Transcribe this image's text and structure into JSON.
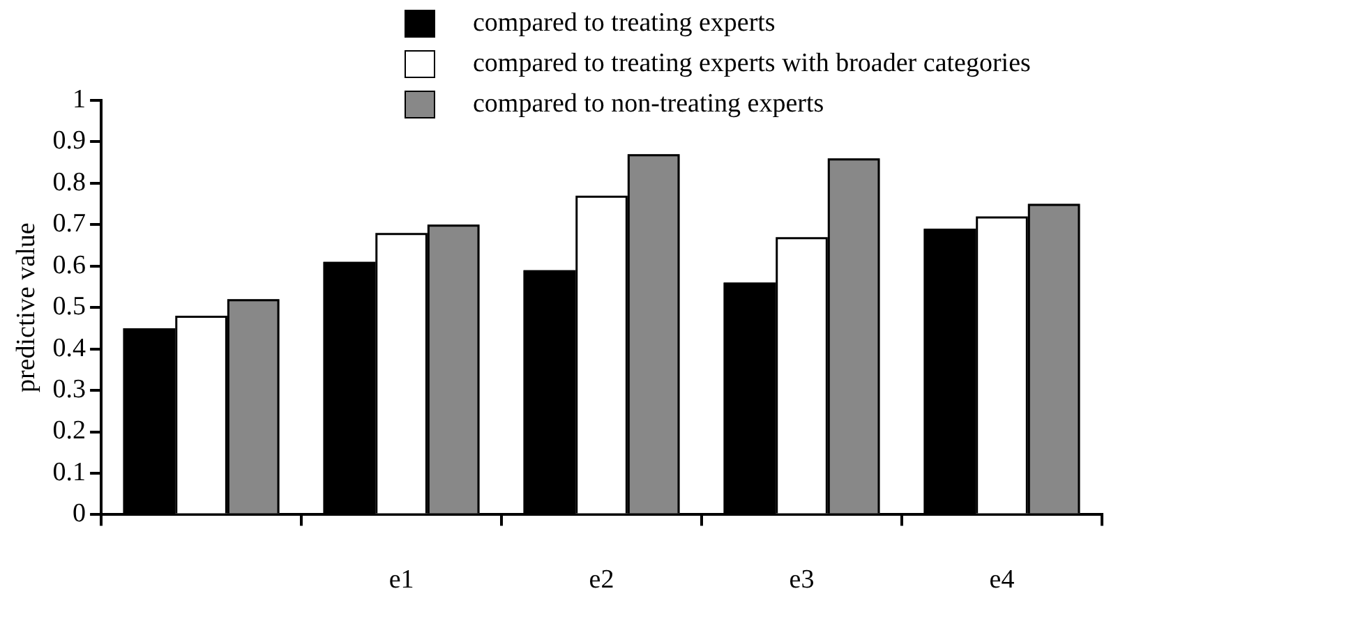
{
  "chart_data": {
    "type": "bar",
    "ylabel": "predictive value",
    "categories": [
      null,
      "e1",
      "e2",
      "e3",
      "e4"
    ],
    "series": [
      {
        "name": "compared to treating experts",
        "color": "#000000",
        "values": [
          0.45,
          0.61,
          0.59,
          0.56,
          0.69
        ]
      },
      {
        "name": "compared to treating experts with broader categories",
        "color": "#ffffff",
        "values": [
          0.48,
          0.68,
          0.77,
          0.67,
          0.72
        ]
      },
      {
        "name": "compared to non-treating experts",
        "color": "#888888",
        "values": [
          0.52,
          0.7,
          0.87,
          0.86,
          0.75
        ]
      }
    ],
    "ylim": [
      0,
      1
    ],
    "yticks": [
      0,
      0.1,
      0.2,
      0.3,
      0.4,
      0.5,
      0.6,
      0.7,
      0.8,
      0.9,
      1
    ],
    "grid": false,
    "legend": "top right"
  }
}
